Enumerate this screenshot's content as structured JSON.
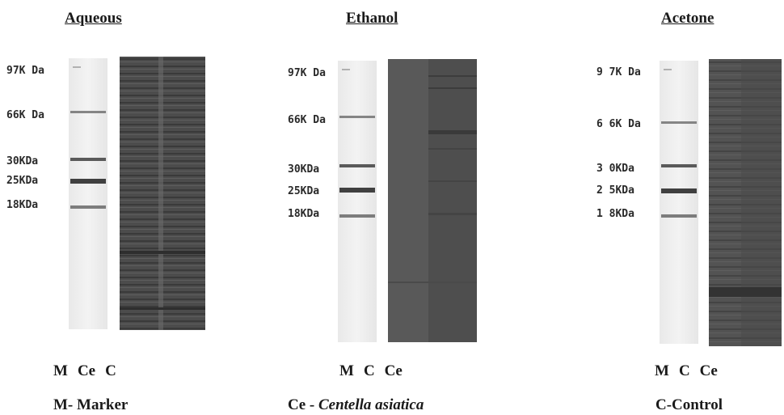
{
  "panels": [
    {
      "title": "Aqueous",
      "markers": [
        "97K Da",
        "66K Da",
        "30KDa",
        "25KDa",
        "18KDa"
      ],
      "lanes": [
        "M",
        "Ce",
        "C"
      ]
    },
    {
      "title": "Ethanol",
      "markers": [
        "97K Da",
        "66K Da",
        "30KDa",
        "25KDa",
        "18KDa"
      ],
      "lanes": [
        "M",
        "C",
        "Ce"
      ]
    },
    {
      "title": "Acetone",
      "markers": [
        "9 7K Da",
        "6 6K Da",
        "3 0KDa",
        "2 5KDa",
        "1 8KDa"
      ],
      "lanes": [
        "M",
        "C",
        "Ce"
      ]
    }
  ],
  "legend": {
    "marker": "M- Marker",
    "ce_prefix": "Ce - ",
    "ce_name": "Centella asiatica",
    "control": "C-Control"
  },
  "colors": {
    "gel_dark": "#4a4a4a",
    "marker_lane": "#eeeeee",
    "band": "#5a5a5a"
  }
}
